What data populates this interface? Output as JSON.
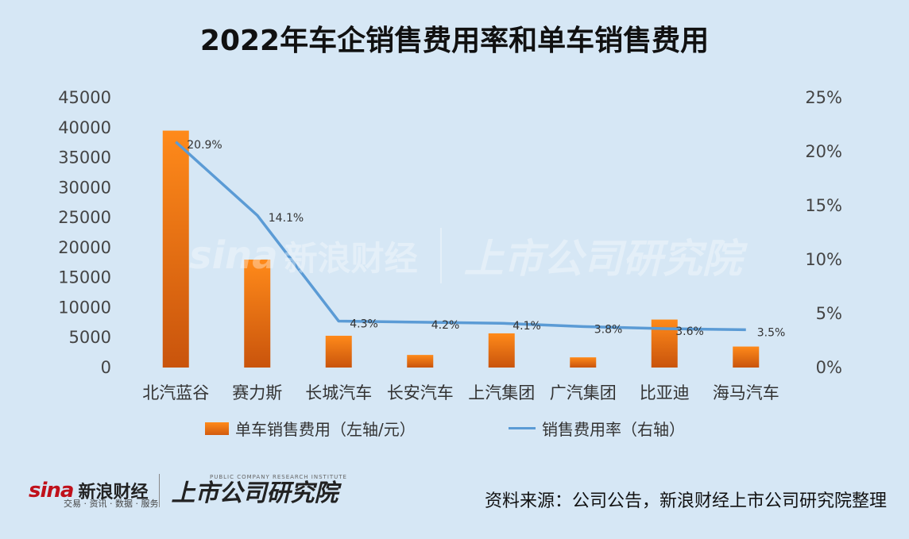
{
  "title": "2022年车企销售费用率和单车销售费用",
  "chart_data": {
    "type": "bar",
    "categories": [
      "北汽蓝谷",
      "赛力斯",
      "长城汽车",
      "长安汽车",
      "上汽集团",
      "广汽集团",
      "比亚迪",
      "海马汽车"
    ],
    "series": [
      {
        "name": "单车销售费用（左轴/元）",
        "type": "bar",
        "axis": "left",
        "values": [
          39500,
          18000,
          5300,
          2100,
          5700,
          1700,
          8000,
          3500
        ]
      },
      {
        "name": "销售费用率（右轴）",
        "type": "line",
        "axis": "right",
        "values": [
          20.9,
          14.1,
          4.3,
          4.2,
          4.1,
          3.8,
          3.6,
          3.5
        ],
        "labels": [
          "20.9%",
          "14.1%",
          "4.3%",
          "4.2%",
          "4.1%",
          "3.8%",
          "3.6%",
          "3.5%"
        ]
      }
    ],
    "y_left": {
      "ylim": [
        0,
        45000
      ],
      "ticks": [
        "0",
        "5000",
        "10000",
        "15000",
        "20000",
        "25000",
        "30000",
        "35000",
        "40000",
        "45000"
      ]
    },
    "y_right": {
      "ylim": [
        0,
        25
      ],
      "ticks": [
        "0%",
        "5%",
        "10%",
        "15%",
        "20%",
        "25%"
      ]
    },
    "legend_position": "bottom",
    "grid": false,
    "colors": {
      "bar": "#f07b16",
      "line": "#5b9bd5"
    }
  },
  "legend": {
    "bar_label": "单车销售费用（左轴/元）",
    "line_label": "销售费用率（右轴）"
  },
  "watermark": {
    "sina": "sina",
    "sina_cn": "新浪财经",
    "institute": "上市公司研究院"
  },
  "footer": {
    "sina": "sina",
    "sina_cn": "新浪财经",
    "sina_sub": "交易 · 资讯 · 数据 · 服务",
    "institute_cn": "上市公司研究院",
    "institute_en": "PUBLIC COMPANY RESEARCH INSTITUTE",
    "source": "资料来源：公司公告，新浪财经上市公司研究院整理"
  }
}
